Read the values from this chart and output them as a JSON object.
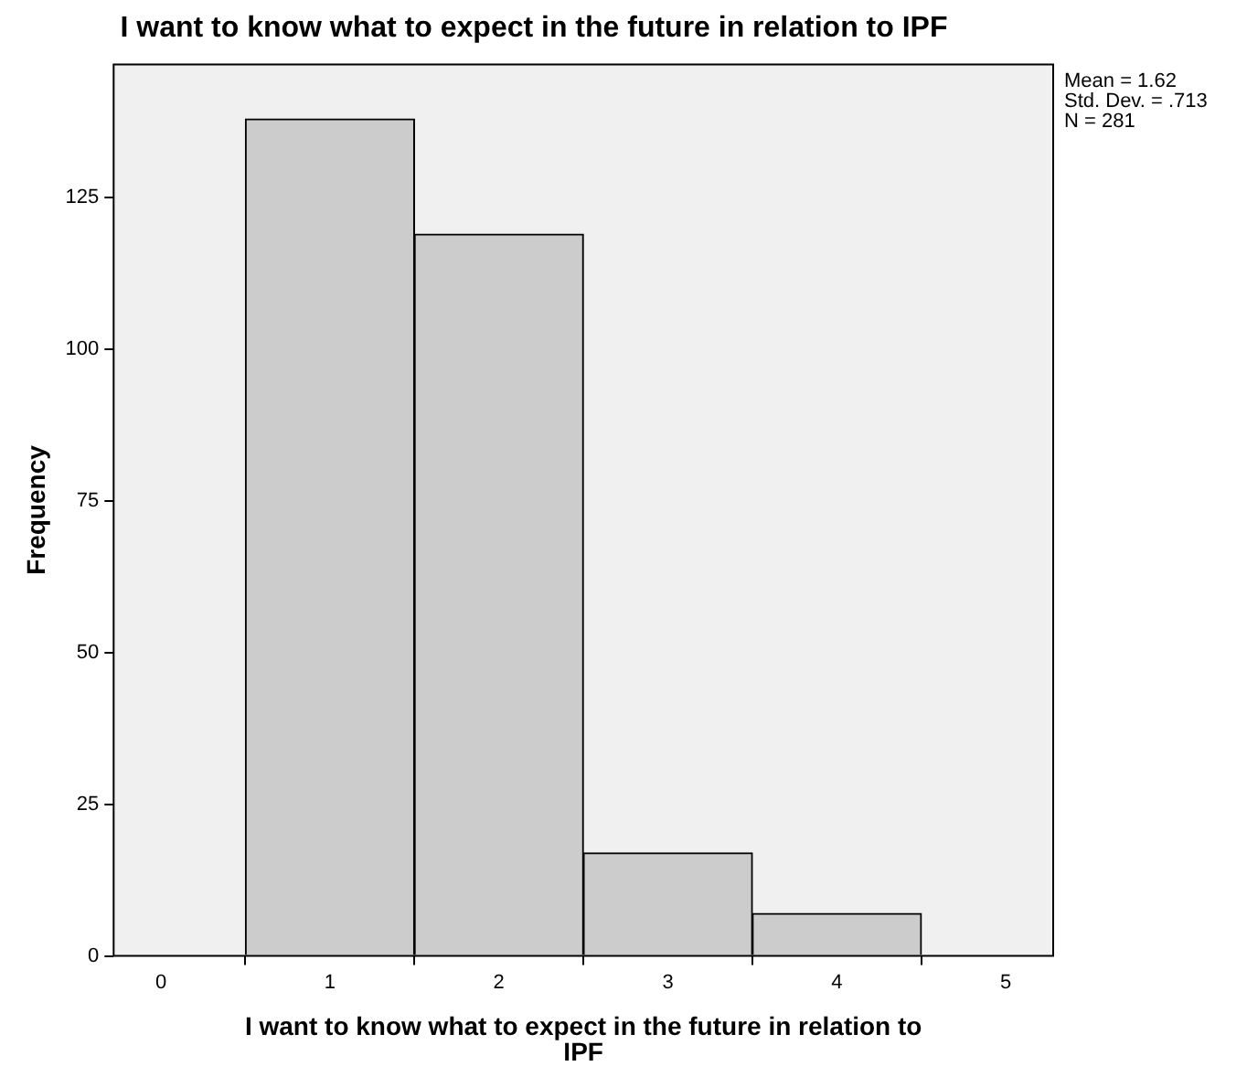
{
  "chart_data": {
    "type": "histogram",
    "title": "I want to know what to expect in the future in relation to IPF",
    "xlabel": "I want to know what to expect in the future in relation to IPF",
    "ylabel": "Frequency",
    "bins": [
      0.5,
      1.5,
      2.5,
      3.5,
      4.5
    ],
    "values": [
      138,
      119,
      17,
      7
    ],
    "color": "#cccccc",
    "xlim": [
      -0.28,
      5.28
    ],
    "xticks": [
      0,
      1,
      2,
      3,
      4,
      5
    ],
    "ylim": [
      0,
      147
    ],
    "yticks": [
      0,
      25,
      50,
      75,
      100,
      125
    ],
    "annotations": [
      "Mean = 1.62",
      "Std. Dev. = .713",
      "N = 281"
    ]
  }
}
